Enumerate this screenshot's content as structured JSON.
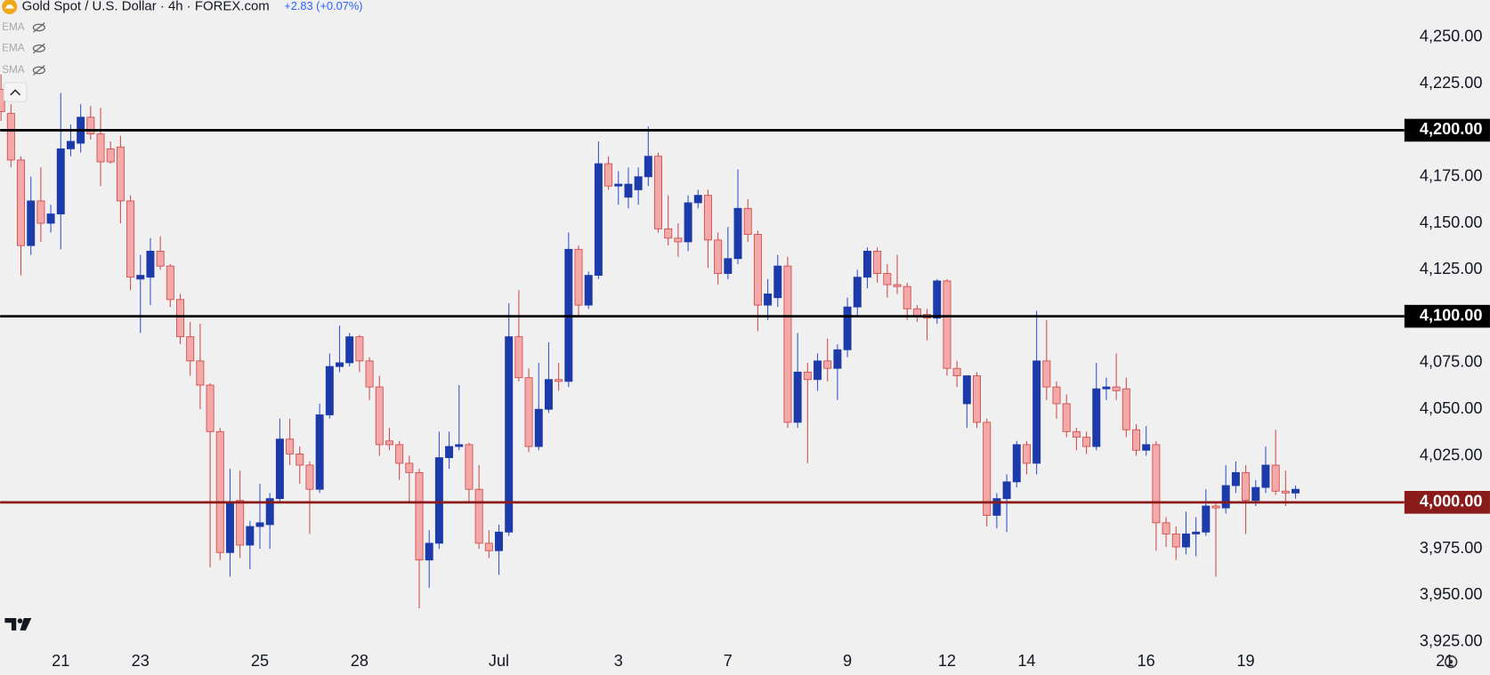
{
  "chart_data": {
    "type": "candlestick",
    "title": "Gold Spot / U.S. Dollar · 4h · FOREX.com",
    "change": "+2.83 (+0.07%)",
    "indicators": [
      "EMA",
      "EMA",
      "SMA"
    ],
    "categories": [
      null,
      null,
      null,
      null,
      null,
      null,
      "21",
      null,
      null,
      null,
      null,
      null,
      null,
      null,
      "23",
      null,
      null,
      null,
      null,
      null,
      null,
      null,
      null,
      null,
      null,
      null,
      "25",
      null,
      null,
      null,
      null,
      null,
      null,
      null,
      null,
      null,
      "28",
      null,
      null,
      null,
      null,
      null,
      null,
      null,
      null,
      null,
      null,
      null,
      null,
      null,
      "Jul",
      null,
      null,
      null,
      null,
      null,
      null,
      null,
      null,
      null,
      null,
      null,
      "3",
      null,
      null,
      null,
      null,
      null,
      null,
      null,
      null,
      null,
      null,
      "7",
      null,
      null,
      null,
      null,
      null,
      null,
      null,
      null,
      null,
      null,
      null,
      "9",
      null,
      null,
      null,
      null,
      null,
      null,
      null,
      null,
      null,
      "12",
      null,
      null,
      null,
      null,
      null,
      null,
      null,
      "14",
      null,
      null,
      null,
      null,
      null,
      null,
      null,
      null,
      null,
      null,
      null,
      "16",
      null,
      null,
      null,
      null,
      null,
      null,
      null,
      null,
      null,
      "19",
      null,
      null,
      null,
      null,
      null,
      null,
      null,
      null,
      null,
      null,
      null,
      null,
      null,
      null,
      null,
      null,
      null,
      null,
      null,
      "21"
    ],
    "open": [
      4222,
      4209,
      4184,
      4138,
      4162,
      4150,
      4155,
      4190,
      4193,
      4207,
      4198,
      4190,
      4191,
      4162,
      4120,
      4121,
      4135,
      4127,
      4109,
      4089,
      4076,
      4063,
      4038,
      3973,
      4001,
      3977,
      3987,
      3988,
      4002,
      4034,
      4026,
      4020,
      4007,
      4047,
      4073,
      4075,
      4089,
      4076,
      4062,
      4033,
      4031,
      4021,
      4016,
      3969,
      3978,
      4024,
      4030,
      4031,
      4007,
      3978,
      3974,
      3984,
      4089,
      4067,
      4030,
      4050,
      4066,
      4065,
      4136,
      4106,
      4122,
      4182,
      4170,
      4164,
      4168,
      4175,
      4186,
      4147,
      4142,
      4140,
      4161,
      4165,
      4141,
      4123,
      4131,
      4158,
      4144,
      4106,
      4110,
      4127,
      4043,
      4070,
      4066,
      4076,
      4072,
      4082,
      4105,
      4121,
      4135,
      4123,
      4117,
      4116,
      4104,
      4101,
      4099,
      4119,
      4072,
      4053,
      4068,
      4043,
      3993,
      4002,
      4011,
      4031,
      4021,
      4076,
      4062,
      4053,
      4038,
      4035,
      4030,
      4061,
      4062,
      4061,
      4039,
      4028,
      4031,
      3989,
      3983,
      3976,
      3983,
      3984,
      3998,
      3997,
      4009,
      4016,
      4001,
      4008,
      4020,
      4006,
      4005,
      null,
      null,
      null,
      null,
      null,
      null,
      null,
      null,
      null,
      null,
      null,
      null,
      null,
      null,
      null
    ],
    "high": [
      4230,
      4214,
      4186,
      4175,
      4180,
      4160,
      4220,
      4203,
      4214,
      4213,
      4212,
      4194,
      4197,
      4165,
      4133,
      4142,
      4143,
      4128,
      4112,
      4097,
      4096,
      4064,
      4040,
      4018,
      4017,
      3990,
      4010,
      4005,
      4045,
      4045,
      4030,
      4022,
      4053,
      4080,
      4095,
      4091,
      4090,
      4078,
      4068,
      4040,
      4033,
      4025,
      4018,
      3985,
      4038,
      4038,
      4063,
      4032,
      4020,
      3985,
      3988,
      4107,
      4114,
      4072,
      4075,
      4086,
      4075,
      4145,
      4138,
      4124,
      4194,
      4186,
      4178,
      4180,
      4180,
      4202,
      4188,
      4165,
      4150,
      4165,
      4168,
      4168,
      4145,
      4148,
      4179,
      4163,
      4146,
      4120,
      4133,
      4132,
      4091,
      4075,
      4080,
      4088,
      4085,
      4110,
      4125,
      4137,
      4137,
      4128,
      4133,
      4118,
      4106,
      4104,
      4120,
      4120,
      4076,
      4068,
      4070,
      4045,
      4005,
      4015,
      4033,
      4033,
      4103,
      4098,
      4065,
      4058,
      4040,
      4038,
      4075,
      4067,
      4080,
      4067,
      4042,
      4041,
      4033,
      3992,
      3987,
      3995,
      3992,
      4007,
      4000,
      4020,
      4022,
      4020,
      4012,
      4030,
      4039,
      4017,
      4009,
      null,
      null,
      null,
      null,
      null,
      null,
      null,
      null,
      null,
      null,
      null,
      null,
      null,
      null,
      null
    ],
    "low": [
      4205,
      4180,
      4122,
      4133,
      4140,
      4145,
      4136,
      4186,
      4188,
      4195,
      4170,
      4182,
      4150,
      4114,
      4091,
      4106,
      4125,
      4105,
      4085,
      4068,
      4050,
      3965,
      3969,
      3960,
      3970,
      3964,
      3975,
      3975,
      4000,
      4020,
      4010,
      3983,
      4005,
      4045,
      4070,
      4073,
      4070,
      4055,
      4025,
      4028,
      4012,
      4000,
      3943,
      3954,
      3975,
      4018,
      4028,
      4000,
      3975,
      3970,
      3961,
      3982,
      4065,
      4027,
      4028,
      4048,
      4060,
      4062,
      4100,
      4104,
      4120,
      4168,
      4160,
      4158,
      4160,
      4170,
      4145,
      4138,
      4132,
      4135,
      4158,
      4126,
      4117,
      4120,
      4128,
      4140,
      4092,
      4098,
      4105,
      4040,
      4040,
      4021,
      4060,
      4065,
      4055,
      4078,
      4100,
      4115,
      4118,
      4110,
      4112,
      4098,
      4097,
      4087,
      4096,
      4068,
      4062,
      4040,
      4040,
      3987,
      3986,
      3984,
      4008,
      4015,
      4015,
      4055,
      4045,
      4035,
      4028,
      4026,
      4028,
      4055,
      4055,
      4035,
      4025,
      4025,
      3974,
      3976,
      3969,
      3972,
      3971,
      3982,
      3960,
      3994,
      4005,
      3983,
      3998,
      4005,
      4004,
      3998,
      4002,
      null,
      null,
      null,
      null,
      null,
      null,
      null,
      null,
      null,
      null,
      null,
      null,
      null,
      null,
      null
    ],
    "close": [
      4210,
      4184,
      4138,
      4162,
      4150,
      4155,
      4190,
      4194,
      4207,
      4198,
      4183,
      4183,
      4162,
      4121,
      4122,
      4135,
      4127,
      4109,
      4089,
      4076,
      4063,
      4038,
      3973,
      4000,
      3977,
      3987,
      3989,
      4002,
      4034,
      4026,
      4020,
      4007,
      4047,
      4073,
      4075,
      4089,
      4076,
      4062,
      4031,
      4031,
      4021,
      4016,
      3969,
      3978,
      4024,
      4030,
      4031,
      4007,
      3978,
      3974,
      3984,
      4089,
      4067,
      4030,
      4050,
      4066,
      4065,
      4136,
      4106,
      4122,
      4182,
      4170,
      4171,
      4171,
      4175,
      4186,
      4147,
      4142,
      4140,
      4161,
      4165,
      4141,
      4123,
      4131,
      4158,
      4144,
      4106,
      4112,
      4127,
      4043,
      4070,
      4066,
      4076,
      4072,
      4082,
      4105,
      4121,
      4135,
      4123,
      4117,
      4116,
      4104,
      4100,
      4099,
      4119,
      4072,
      4068,
      4068,
      4043,
      3993,
      4002,
      4011,
      4031,
      4021,
      4076,
      4062,
      4053,
      4038,
      4035,
      4030,
      4061,
      4062,
      4060,
      4039,
      4028,
      4031,
      3989,
      3983,
      3976,
      3983,
      3984,
      3998,
      3997,
      4009,
      4016,
      4001,
      4008,
      4020,
      4006,
      4005,
      4007,
      null,
      null,
      null,
      null,
      null,
      null,
      null,
      null,
      null,
      null,
      null,
      null,
      null,
      null,
      null
    ],
    "up_color": "#1c3aa9",
    "up_wick": "#2f55d4",
    "down_color": "#f5a8a8",
    "down_border": "#cf4b4b",
    "ylim": [
      3923,
      4270
    ],
    "yticks": [
      {
        "value": 3925,
        "label": "3,925.00"
      },
      {
        "value": 3950,
        "label": "3,950.00"
      },
      {
        "value": 3975,
        "label": "3,975.00"
      },
      {
        "value": 4025,
        "label": "4,025.00"
      },
      {
        "value": 4050,
        "label": "4,050.00"
      },
      {
        "value": 4075,
        "label": "4,075.00"
      },
      {
        "value": 4125,
        "label": "4,125.00"
      },
      {
        "value": 4150,
        "label": "4,150.00"
      },
      {
        "value": 4175,
        "label": "4,175.00"
      },
      {
        "value": 4225,
        "label": "4,225.00"
      },
      {
        "value": 4250,
        "label": "4,250.00"
      }
    ],
    "levels": [
      {
        "value": 4200,
        "label": "4,200.00",
        "color": "#000000"
      },
      {
        "value": 4100,
        "label": "4,100.00",
        "color": "#000000"
      },
      {
        "value": 4000,
        "label": "4,000.00",
        "color": "#8b1a1a"
      }
    ],
    "grid": false
  }
}
